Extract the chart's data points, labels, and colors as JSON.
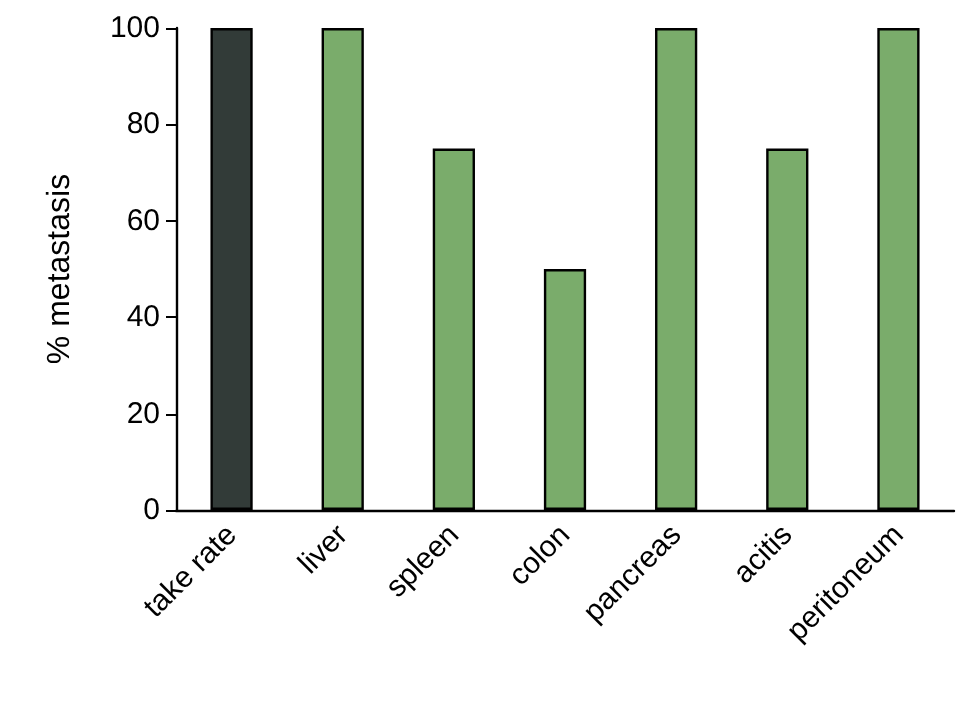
{
  "chart_data": {
    "type": "bar",
    "ylabel": "% metastasis",
    "categories": [
      "take rate",
      "liver",
      "spleen",
      "colon",
      "pancreas",
      "acitis",
      "peritoneum"
    ],
    "values": [
      100,
      100,
      75,
      50,
      100,
      75,
      100
    ],
    "colors": [
      "#323b38",
      "#7aac6b",
      "#7aac6b",
      "#7aac6b",
      "#7aac6b",
      "#7aac6b",
      "#7aac6b"
    ],
    "ylim": [
      0,
      100
    ],
    "yticks": [
      0,
      20,
      40,
      60,
      80,
      100
    ],
    "grid": false
  }
}
